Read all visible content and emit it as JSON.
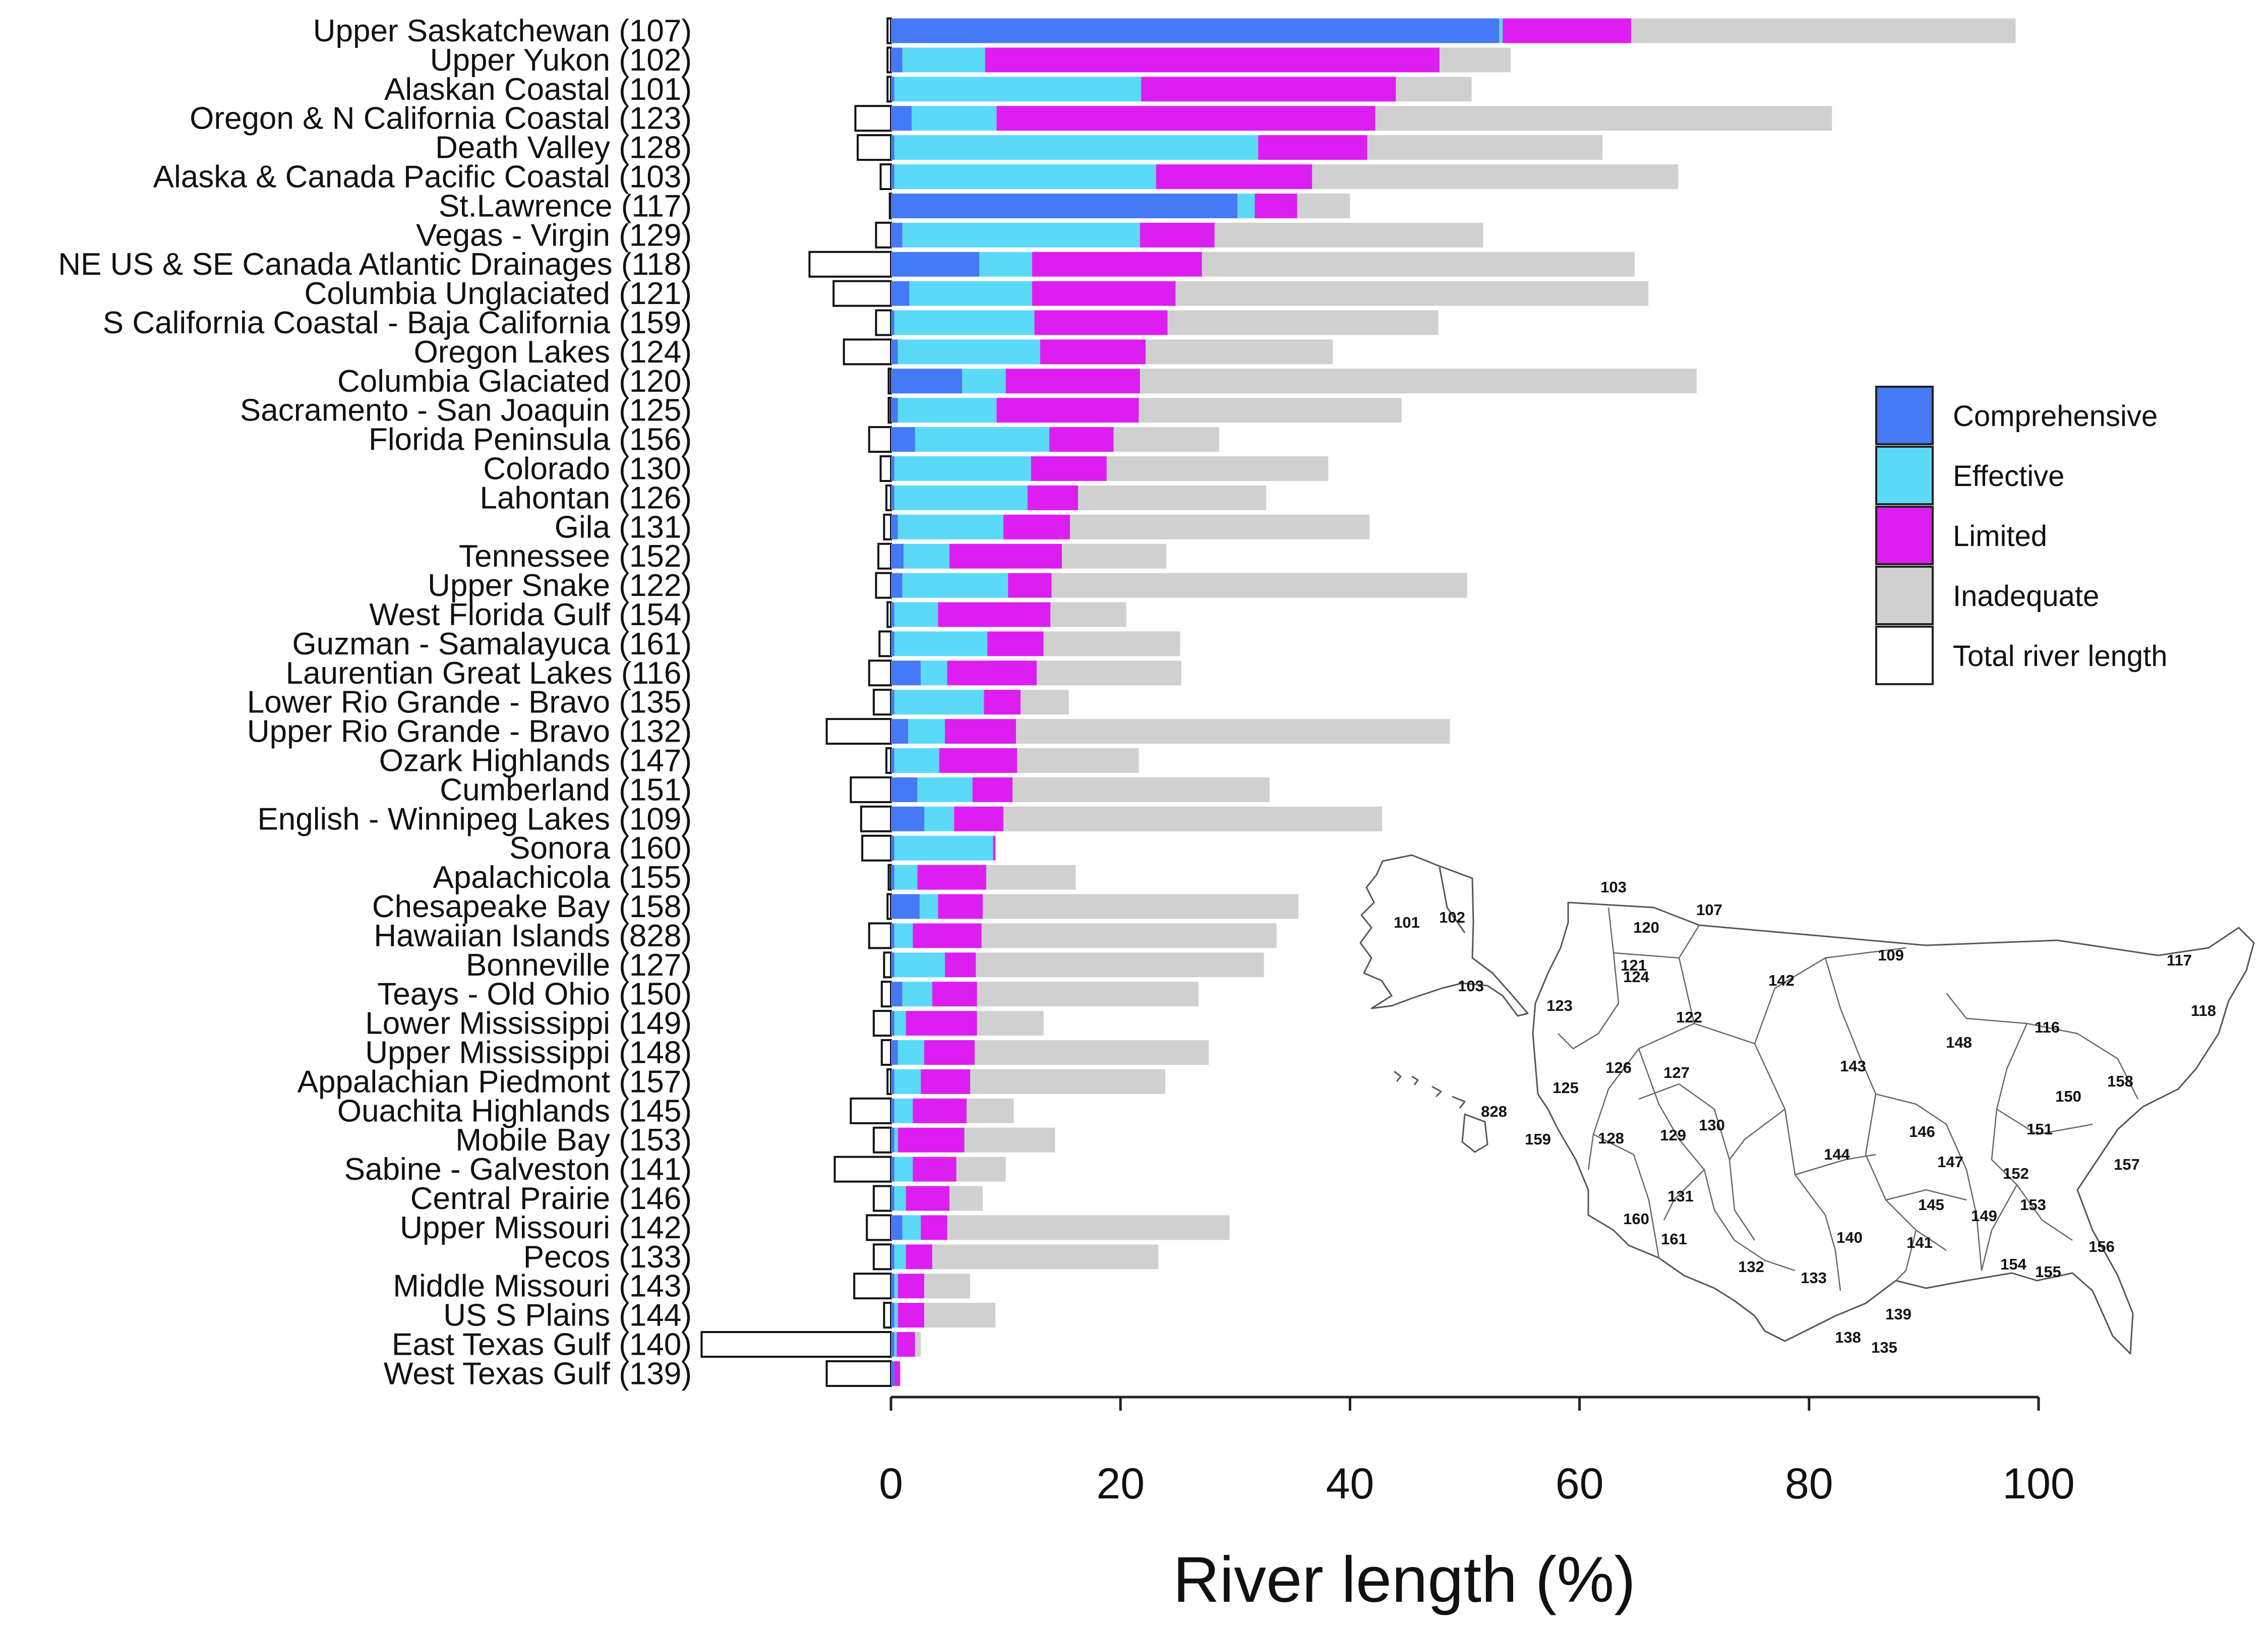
{
  "chart_data": {
    "type": "bar",
    "orientation": "horizontal",
    "stacked": true,
    "xlabel": "River length (%)",
    "xlim": [
      0,
      100
    ],
    "xticks": [
      0,
      20,
      40,
      60,
      80,
      100
    ],
    "legend_position": "right",
    "legend": [
      {
        "name": "Comprehensive",
        "color": "#4579F5"
      },
      {
        "name": "Effective",
        "color": "#5BDAF8"
      },
      {
        "name": "Limited",
        "color": "#DD1EF1"
      },
      {
        "name": "Inadequate",
        "color": "#D0D0D0"
      },
      {
        "name": "Total river length",
        "color": "#FFFFFF"
      }
    ],
    "series_names": [
      "Comprehensive",
      "Effective",
      "Limited",
      "Inadequate"
    ],
    "total_river_length_note": "Total river length drawn as outlined bars extending left of zero (relative length)",
    "categories": [
      {
        "label": "Upper Saskatchewan (107)",
        "values": [
          53.0,
          0.3,
          11.2,
          33.5
        ],
        "total_length": 0.3
      },
      {
        "label": "Upper Yukon (102)",
        "values": [
          1.0,
          7.2,
          39.6,
          6.2
        ],
        "total_length": 0.3
      },
      {
        "label": "Alaskan Coastal (101)",
        "values": [
          0.3,
          21.5,
          22.2,
          6.6
        ],
        "total_length": 0.3
      },
      {
        "label": "Oregon & N California Coastal (123)",
        "values": [
          1.8,
          7.4,
          33.0,
          39.8
        ],
        "total_length": 3.1
      },
      {
        "label": "Death Valley (128)",
        "values": [
          0.3,
          31.7,
          9.5,
          20.5
        ],
        "total_length": 2.9
      },
      {
        "label": "Alaska & Canada Pacific Coastal (103)",
        "values": [
          0.3,
          22.8,
          13.6,
          31.9
        ],
        "total_length": 0.9
      },
      {
        "label": "St.Lawrence (117)",
        "values": [
          30.2,
          1.5,
          3.7,
          4.6
        ],
        "total_length": 0.1
      },
      {
        "label": "Vegas - Virgin (129)",
        "values": [
          1.0,
          20.7,
          6.5,
          23.4
        ],
        "total_length": 1.3
      },
      {
        "label": "NE US & SE Canada Atlantic Drainages (118)",
        "values": [
          7.7,
          4.6,
          14.8,
          37.7
        ],
        "total_length": 7.1
      },
      {
        "label": "Columbia Unglaciated (121)",
        "values": [
          1.6,
          10.7,
          12.5,
          41.2
        ],
        "total_length": 5.0
      },
      {
        "label": "S California Coastal - Baja California (159)",
        "values": [
          0.3,
          12.2,
          11.6,
          23.6
        ],
        "total_length": 1.3
      },
      {
        "label": "Oregon Lakes (124)",
        "values": [
          0.6,
          12.4,
          9.2,
          16.3
        ],
        "total_length": 4.1
      },
      {
        "label": "Columbia Glaciated (120)",
        "values": [
          6.2,
          3.8,
          11.7,
          48.5
        ],
        "total_length": 0.2
      },
      {
        "label": "Sacramento - San Joaquin (125)",
        "values": [
          0.6,
          8.6,
          12.4,
          22.9
        ],
        "total_length": 0.2
      },
      {
        "label": "Florida Peninsula (156)",
        "values": [
          2.1,
          11.7,
          5.6,
          9.2
        ],
        "total_length": 1.9
      },
      {
        "label": "Colorado (130)",
        "values": [
          0.3,
          11.9,
          6.6,
          19.3
        ],
        "total_length": 0.9
      },
      {
        "label": "Lahontan (126)",
        "values": [
          0.3,
          11.6,
          4.4,
          16.4
        ],
        "total_length": 0.4
      },
      {
        "label": "Gila (131)",
        "values": [
          0.6,
          9.2,
          5.8,
          26.1
        ],
        "total_length": 0.6
      },
      {
        "label": "Tennessee (152)",
        "values": [
          1.1,
          4.0,
          9.8,
          9.1
        ],
        "total_length": 1.1
      },
      {
        "label": "Upper Snake (122)",
        "values": [
          1.0,
          9.2,
          3.8,
          36.2
        ],
        "total_length": 1.3
      },
      {
        "label": "West Florida Gulf (154)",
        "values": [
          0.3,
          3.8,
          9.8,
          6.6
        ],
        "total_length": 0.3
      },
      {
        "label": "Guzman - Samalayuca (161)",
        "values": [
          0.3,
          8.1,
          4.9,
          11.9
        ],
        "total_length": 1.0
      },
      {
        "label": "Laurentian Great Lakes (116)",
        "values": [
          2.6,
          2.3,
          7.8,
          12.6
        ],
        "total_length": 1.9
      },
      {
        "label": "Lower Rio Grande - Bravo (135)",
        "values": [
          0.3,
          7.8,
          3.2,
          4.2
        ],
        "total_length": 1.5
      },
      {
        "label": "Upper Rio Grande - Bravo (132)",
        "values": [
          1.5,
          3.2,
          6.2,
          37.8
        ],
        "total_length": 5.6
      },
      {
        "label": "Ozark Highlands (147)",
        "values": [
          0.3,
          3.9,
          6.8,
          10.6
        ],
        "total_length": 0.4
      },
      {
        "label": "Cumberland (151)",
        "values": [
          2.3,
          4.8,
          3.5,
          22.4
        ],
        "total_length": 3.5
      },
      {
        "label": "English - Winnipeg Lakes (109)",
        "values": [
          2.9,
          2.6,
          4.3,
          33.0
        ],
        "total_length": 2.6
      },
      {
        "label": "Sonora (160)",
        "values": [
          0.3,
          8.6,
          0.2,
          0
        ],
        "total_length": 2.5
      },
      {
        "label": "Apalachicola (155)",
        "values": [
          0.3,
          2.0,
          6.0,
          7.8
        ],
        "total_length": 0.2
      },
      {
        "label": "Chesapeake Bay (158)",
        "values": [
          2.5,
          1.6,
          3.9,
          27.5
        ],
        "total_length": 0.3
      },
      {
        "label": "Hawaiian Islands (828)",
        "values": [
          0.3,
          1.6,
          6.0,
          25.7
        ],
        "total_length": 1.9
      },
      {
        "label": "Bonneville (127)",
        "values": [
          0.3,
          4.4,
          2.7,
          25.1
        ],
        "total_length": 0.6
      },
      {
        "label": "Teays - Old Ohio (150)",
        "values": [
          1.0,
          2.6,
          3.9,
          19.3
        ],
        "total_length": 0.8
      },
      {
        "label": "Lower Mississippi (149)",
        "values": [
          0.3,
          1.0,
          6.2,
          5.8
        ],
        "total_length": 1.5
      },
      {
        "label": "Upper Mississippi (148)",
        "values": [
          0.6,
          2.3,
          4.4,
          20.4
        ],
        "total_length": 0.8
      },
      {
        "label": "Appalachian Piedmont (157)",
        "values": [
          0.3,
          2.3,
          4.3,
          17.0
        ],
        "total_length": 0.3
      },
      {
        "label": "Ouachita Highlands (145)",
        "values": [
          0.3,
          1.6,
          4.7,
          4.1
        ],
        "total_length": 3.5
      },
      {
        "label": "Mobile Bay (153)",
        "values": [
          0.3,
          0.3,
          5.8,
          7.9
        ],
        "total_length": 1.5
      },
      {
        "label": "Sabine - Galveston (141)",
        "values": [
          0.3,
          1.6,
          3.8,
          4.3
        ],
        "total_length": 4.9
      },
      {
        "label": "Central Prairie (146)",
        "values": [
          0.3,
          1.0,
          3.8,
          2.9
        ],
        "total_length": 1.5
      },
      {
        "label": "Upper Missouri (142)",
        "values": [
          1.0,
          1.6,
          2.3,
          24.6
        ],
        "total_length": 2.1
      },
      {
        "label": "Pecos (133)",
        "values": [
          0.3,
          1.0,
          2.3,
          19.7
        ],
        "total_length": 1.5
      },
      {
        "label": "Middle Missouri (143)",
        "values": [
          0.3,
          0.3,
          2.3,
          4.0
        ],
        "total_length": 3.2
      },
      {
        "label": "US S Plains (144)",
        "values": [
          0.3,
          0.3,
          2.3,
          6.2
        ],
        "total_length": 0.6
      },
      {
        "label": "East Texas Gulf (140)",
        "values": [
          0.3,
          0.2,
          1.6,
          0.5
        ],
        "total_length": 16.5
      },
      {
        "label": "West Texas Gulf (139)",
        "values": [
          0.3,
          0,
          0.5,
          0
        ],
        "total_length": 5.6
      }
    ],
    "inset_map": {
      "description": "Map of North American freshwater ecoregions",
      "labels": [
        "103",
        "107",
        "101",
        "102",
        "120",
        "109",
        "117",
        "121",
        "124",
        "142",
        "103",
        "123",
        "118",
        "122",
        "116",
        "148",
        "143",
        "126",
        "127",
        "158",
        "125",
        "150",
        "828",
        "159",
        "128",
        "129",
        "130",
        "151",
        "146",
        "144",
        "147",
        "157",
        "152",
        "153",
        "131",
        "145",
        "149",
        "160",
        "161",
        "140",
        "141",
        "156",
        "132",
        "133",
        "154",
        "155",
        "139",
        "138",
        "135"
      ]
    }
  }
}
